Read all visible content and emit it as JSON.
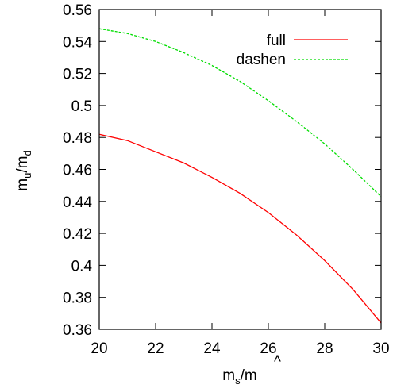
{
  "chart_data": {
    "type": "line",
    "xlabel": {
      "base": "m",
      "sub": "s",
      "slash": "/",
      "hat": "m",
      "hat_accent": "^"
    },
    "ylabel": {
      "base1": "m",
      "sub1": "u",
      "slash": "/",
      "base2": "m",
      "sub2": "d"
    },
    "xlim": [
      20,
      30
    ],
    "ylim": [
      0.36,
      0.56
    ],
    "x_ticks": [
      20,
      22,
      24,
      26,
      28,
      30
    ],
    "y_ticks": [
      0.36,
      0.38,
      0.4,
      0.42,
      0.44,
      0.46,
      0.48,
      0.5,
      0.52,
      0.54,
      0.56
    ],
    "x_tick_labels": [
      "20",
      "22",
      "24",
      "26",
      "28",
      "30"
    ],
    "y_tick_labels": [
      "0.36",
      "0.38",
      "0.4",
      "0.42",
      "0.44",
      "0.46",
      "0.48",
      "0.5",
      "0.52",
      "0.54",
      "0.56"
    ],
    "grid": false,
    "legend_position": "top-right",
    "series": [
      {
        "name": "full",
        "color": "#ff0000",
        "style": "solid",
        "x": [
          20,
          21,
          22,
          23,
          24,
          25,
          26,
          27,
          28,
          29,
          30
        ],
        "y": [
          0.482,
          0.478,
          0.471,
          0.464,
          0.455,
          0.445,
          0.433,
          0.419,
          0.403,
          0.385,
          0.364
        ]
      },
      {
        "name": "dashen",
        "color": "#00dd00",
        "style": "dashed",
        "x": [
          20,
          21,
          22,
          23,
          24,
          25,
          26,
          27,
          28,
          29,
          30
        ],
        "y": [
          0.548,
          0.545,
          0.54,
          0.533,
          0.525,
          0.515,
          0.503,
          0.49,
          0.476,
          0.46,
          0.443
        ]
      }
    ]
  }
}
